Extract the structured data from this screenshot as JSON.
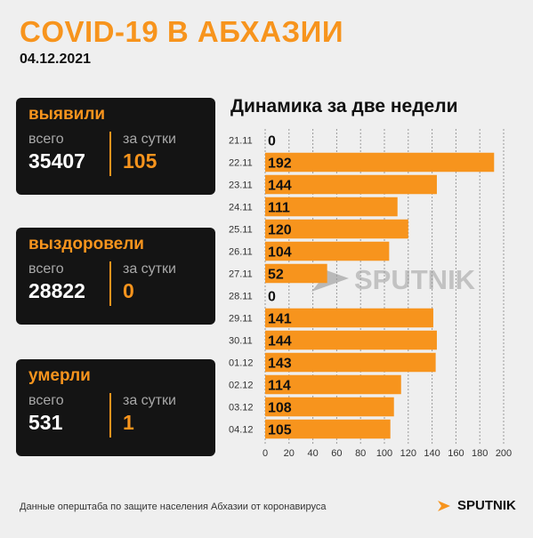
{
  "header": {
    "title": "COVID-19 В АБХАЗИИ",
    "date": "04.12.2021"
  },
  "cards": [
    {
      "title": "выявили",
      "total_label": "всего",
      "total": "35407",
      "daily_label": "за сутки",
      "daily": "105"
    },
    {
      "title": "выздоровели",
      "total_label": "всего",
      "total": "28822",
      "daily_label": "за сутки",
      "daily": "0"
    },
    {
      "title": "умерли",
      "total_label": "всего",
      "total": "531",
      "daily_label": "за сутки",
      "daily": "1"
    }
  ],
  "chart_data": {
    "type": "bar",
    "orientation": "horizontal",
    "title": "Динамика за две недели",
    "categories": [
      "21.11",
      "22.11",
      "23.11",
      "24.11",
      "25.11",
      "26.11",
      "27.11",
      "28.11",
      "29.11",
      "30.11",
      "01.12",
      "02.12",
      "03.12",
      "04.12"
    ],
    "values": [
      0,
      192,
      144,
      111,
      120,
      104,
      52,
      0,
      141,
      144,
      143,
      114,
      108,
      105
    ],
    "x_ticks": [
      0,
      20,
      40,
      60,
      80,
      100,
      120,
      140,
      160,
      180,
      200
    ],
    "xlim": [
      0,
      200
    ],
    "grid": true,
    "bar_color": "#f7941d"
  },
  "watermark": "SPUTNIK",
  "footer": {
    "source": "Данные оперштаба по защите населения Абхазии от коронавируса",
    "brand": "SPUTNIK"
  },
  "colors": {
    "accent": "#f7941d",
    "card_bg": "#141414"
  }
}
